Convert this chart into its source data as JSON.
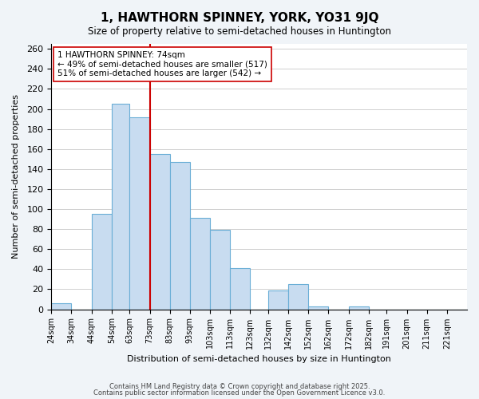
{
  "title": "1, HAWTHORN SPINNEY, YORK, YO31 9JQ",
  "subtitle": "Size of property relative to semi-detached houses in Huntington",
  "xlabel": "Distribution of semi-detached houses by size in Huntington",
  "ylabel": "Number of semi-detached properties",
  "bin_labels": [
    "24sqm",
    "34sqm",
    "44sqm",
    "54sqm",
    "63sqm",
    "73sqm",
    "83sqm",
    "93sqm",
    "103sqm",
    "113sqm",
    "123sqm",
    "132sqm",
    "142sqm",
    "152sqm",
    "162sqm",
    "172sqm",
    "182sqm",
    "191sqm",
    "201sqm",
    "211sqm",
    "221sqm"
  ],
  "bin_edges": [
    24,
    34,
    44,
    54,
    63,
    73,
    83,
    93,
    103,
    113,
    123,
    132,
    142,
    152,
    162,
    172,
    182,
    191,
    201,
    211,
    221
  ],
  "bar_heights": [
    6,
    0,
    95,
    205,
    192,
    155,
    147,
    91,
    79,
    41,
    0,
    19,
    25,
    3,
    0,
    3,
    0,
    0,
    0,
    0,
    0
  ],
  "bar_color": "#c8dcf0",
  "bar_edgecolor": "#6aaed6",
  "vline_x": 73,
  "vline_color": "#cc0000",
  "ylim": [
    0,
    265
  ],
  "yticks": [
    0,
    20,
    40,
    60,
    80,
    100,
    120,
    140,
    160,
    180,
    200,
    220,
    240,
    260
  ],
  "annotation_title": "1 HAWTHORN SPINNEY: 74sqm",
  "annotation_line1": "← 49% of semi-detached houses are smaller (517)",
  "annotation_line2": "51% of semi-detached houses are larger (542) →",
  "annotation_box_color": "#ffffff",
  "annotation_box_edgecolor": "#cc0000",
  "footer1": "Contains HM Land Registry data © Crown copyright and database right 2025.",
  "footer2": "Contains public sector information licensed under the Open Government Licence v3.0.",
  "background_color": "#f0f4f8",
  "plot_background_color": "#ffffff",
  "figsize": [
    6.0,
    5.0
  ],
  "dpi": 100
}
